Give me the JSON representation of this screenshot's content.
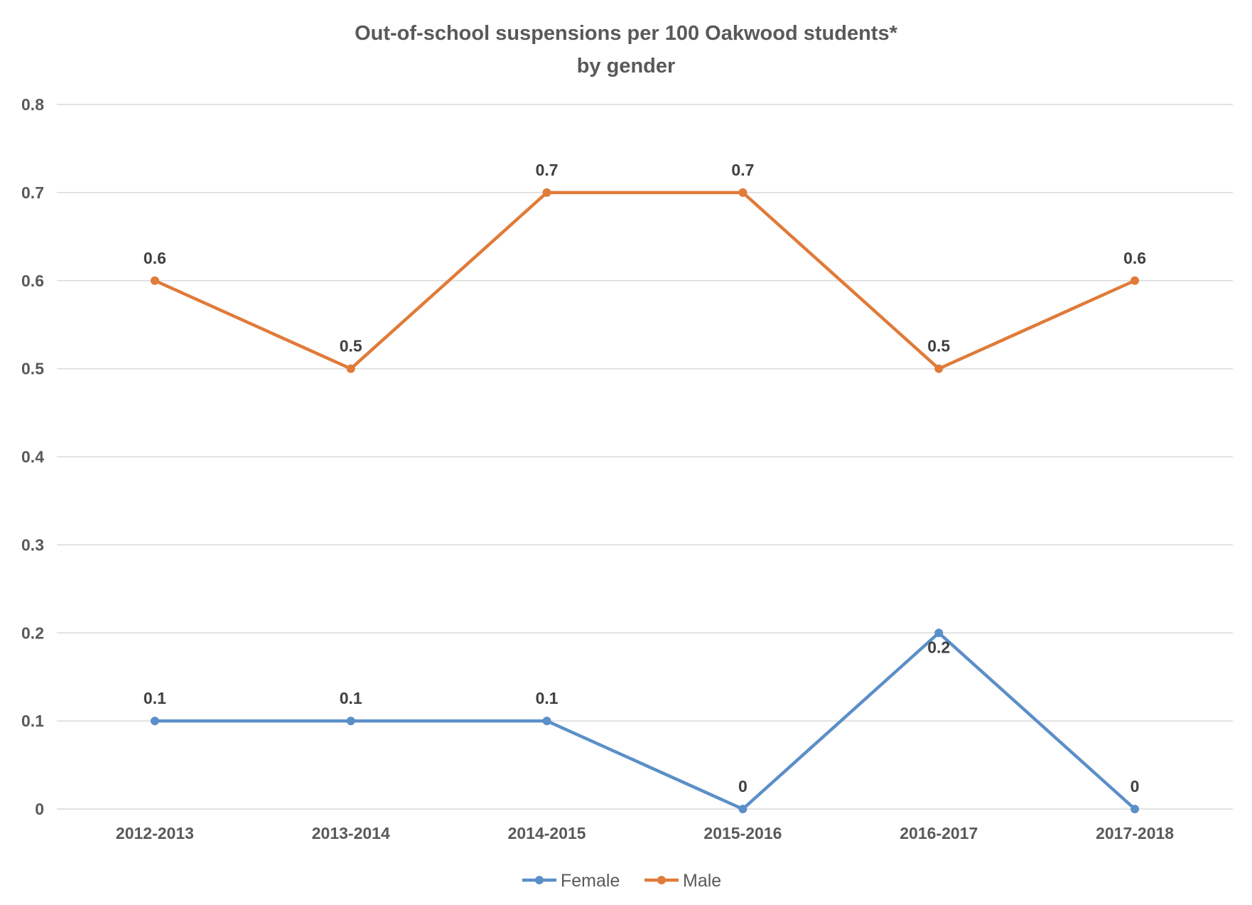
{
  "chart_data": {
    "type": "line",
    "title": "Out-of-school suspensions per 100 Oakwood students*",
    "subtitle": "by gender",
    "xlabel": "",
    "ylabel": "",
    "categories": [
      "2012-2013",
      "2013-2014",
      "2014-2015",
      "2015-2016",
      "2016-2017",
      "2017-2018"
    ],
    "ylim": [
      0,
      0.8
    ],
    "yticks": [
      0,
      0.1,
      0.2,
      0.3,
      0.4,
      0.5,
      0.6,
      0.7,
      0.8
    ],
    "ytick_labels": [
      "0",
      "0.1",
      "0.2",
      "0.3",
      "0.4",
      "0.5",
      "0.6",
      "0.7",
      "0.8"
    ],
    "grid": true,
    "legend_position": "bottom",
    "series": [
      {
        "name": "Female",
        "color": "#5B8FC9",
        "values": [
          0.1,
          0.1,
          0.1,
          0,
          0.2,
          0
        ],
        "labels": [
          "0.1",
          "0.1",
          "0.1",
          "0",
          "0.2",
          "0"
        ]
      },
      {
        "name": "Male",
        "color": "#E07B39",
        "values": [
          0.6,
          0.5,
          0.7,
          0.7,
          0.5,
          0.6
        ],
        "labels": [
          "0.6",
          "0.5",
          "0.7",
          "0.7",
          "0.5",
          "0.6"
        ]
      }
    ]
  },
  "colors": {
    "grid": "#D9D9D9",
    "text": "#595959",
    "label": "#404040"
  }
}
